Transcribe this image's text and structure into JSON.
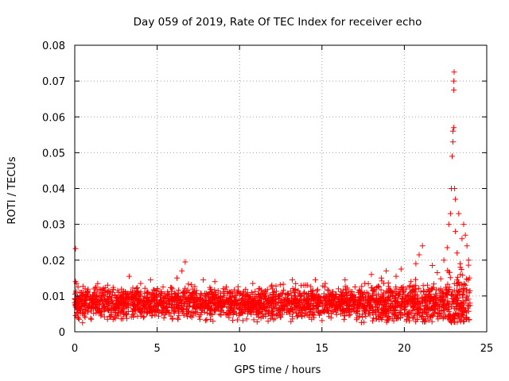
{
  "chart_data": {
    "type": "scatter",
    "title": "Day 059 of 2019, Rate Of TEC Index for receiver echo",
    "xlabel": "GPS time / hours",
    "ylabel": "ROTI / TECUs",
    "xlim": [
      0,
      25
    ],
    "ylim": [
      0,
      0.08
    ],
    "xticks": [
      0,
      5,
      10,
      15,
      20,
      25
    ],
    "xtick_labels": [
      "0",
      "5",
      "10",
      "15",
      "20",
      "25"
    ],
    "yticks": [
      0,
      0.01,
      0.02,
      0.03,
      0.04,
      0.05,
      0.06,
      0.07,
      0.08
    ],
    "ytick_labels": [
      "0",
      "0.01",
      "0.02",
      "0.03",
      "0.04",
      "0.05",
      "0.06",
      "0.07",
      "0.08"
    ],
    "grid": true,
    "marker": "+",
    "series": [
      {
        "name": "ROTI",
        "color": "#ff0000",
        "points": [
          [
            0.05,
            0.0232
          ],
          [
            0.05,
            0.014
          ],
          [
            0.1,
            0.0135
          ],
          [
            0.2,
            0.0125
          ],
          [
            0.3,
            0.0085
          ],
          [
            0.6,
            0.0098
          ],
          [
            0.9,
            0.007
          ],
          [
            1.0,
            0.0035
          ],
          [
            1.2,
            0.011
          ],
          [
            1.5,
            0.006
          ],
          [
            1.8,
            0.009
          ],
          [
            2.0,
            0.013
          ],
          [
            2.3,
            0.008
          ],
          [
            2.6,
            0.0115
          ],
          [
            3.0,
            0.0065
          ],
          [
            3.3,
            0.0155
          ],
          [
            3.5,
            0.011
          ],
          [
            3.7,
            0.0095
          ],
          [
            4.0,
            0.0135
          ],
          [
            4.3,
            0.0075
          ],
          [
            4.6,
            0.0145
          ],
          [
            5.0,
            0.012
          ],
          [
            5.3,
            0.006
          ],
          [
            5.6,
            0.01
          ],
          [
            5.9,
            0.0085
          ],
          [
            6.2,
            0.015
          ],
          [
            6.5,
            0.017
          ],
          [
            6.7,
            0.0195
          ],
          [
            7.0,
            0.008
          ],
          [
            7.4,
            0.0115
          ],
          [
            7.8,
            0.0145
          ],
          [
            8.1,
            0.007
          ],
          [
            8.5,
            0.014
          ],
          [
            8.8,
            0.0095
          ],
          [
            9.2,
            0.0125
          ],
          [
            9.6,
            0.006
          ],
          [
            10.0,
            0.0105
          ],
          [
            10.5,
            0.008
          ],
          [
            10.8,
            0.0135
          ],
          [
            11.2,
            0.007
          ],
          [
            11.6,
            0.009
          ],
          [
            12.0,
            0.012
          ],
          [
            12.4,
            0.006
          ],
          [
            12.8,
            0.0105
          ],
          [
            13.2,
            0.0145
          ],
          [
            13.6,
            0.0075
          ],
          [
            14.0,
            0.013
          ],
          [
            14.4,
            0.005
          ],
          [
            14.6,
            0.0145
          ],
          [
            14.8,
            0.01
          ],
          [
            15.2,
            0.0135
          ],
          [
            15.6,
            0.008
          ],
          [
            16.0,
            0.012
          ],
          [
            16.4,
            0.0145
          ],
          [
            16.8,
            0.007
          ],
          [
            17.2,
            0.011
          ],
          [
            17.6,
            0.0135
          ],
          [
            18.0,
            0.016
          ],
          [
            18.3,
            0.009
          ],
          [
            18.6,
            0.015
          ],
          [
            18.9,
            0.017
          ],
          [
            19.2,
            0.011
          ],
          [
            19.5,
            0.0155
          ],
          [
            19.8,
            0.0175
          ],
          [
            20.1,
            0.0095
          ],
          [
            20.4,
            0.014
          ],
          [
            20.7,
            0.019
          ],
          [
            20.9,
            0.0215
          ],
          [
            21.1,
            0.024
          ],
          [
            21.4,
            0.013
          ],
          [
            21.7,
            0.0185
          ],
          [
            22.0,
            0.0165
          ],
          [
            22.2,
            0.012
          ],
          [
            22.4,
            0.02
          ],
          [
            22.6,
            0.0235
          ],
          [
            22.7,
            0.03
          ],
          [
            22.8,
            0.033
          ],
          [
            22.85,
            0.04
          ],
          [
            22.9,
            0.049
          ],
          [
            22.95,
            0.053
          ],
          [
            22.95,
            0.056
          ],
          [
            23.0,
            0.057
          ],
          [
            23.0,
            0.0675
          ],
          [
            23.0,
            0.07
          ],
          [
            23.02,
            0.0725
          ],
          [
            23.05,
            0.04
          ],
          [
            23.1,
            0.037
          ],
          [
            23.1,
            0.028
          ],
          [
            23.2,
            0.022
          ],
          [
            23.3,
            0.033
          ],
          [
            23.4,
            0.018
          ],
          [
            23.5,
            0.026
          ],
          [
            23.6,
            0.03
          ],
          [
            23.7,
            0.027
          ],
          [
            23.8,
            0.024
          ],
          [
            23.9,
            0.02
          ],
          [
            23.95,
            0.015
          ],
          [
            23.98,
            0.008
          ]
        ],
        "band": {
          "x_start": 0.0,
          "x_end": 24.0,
          "y_base": 0.008,
          "y_spread": 0.0045,
          "count": 2600
        }
      }
    ]
  }
}
